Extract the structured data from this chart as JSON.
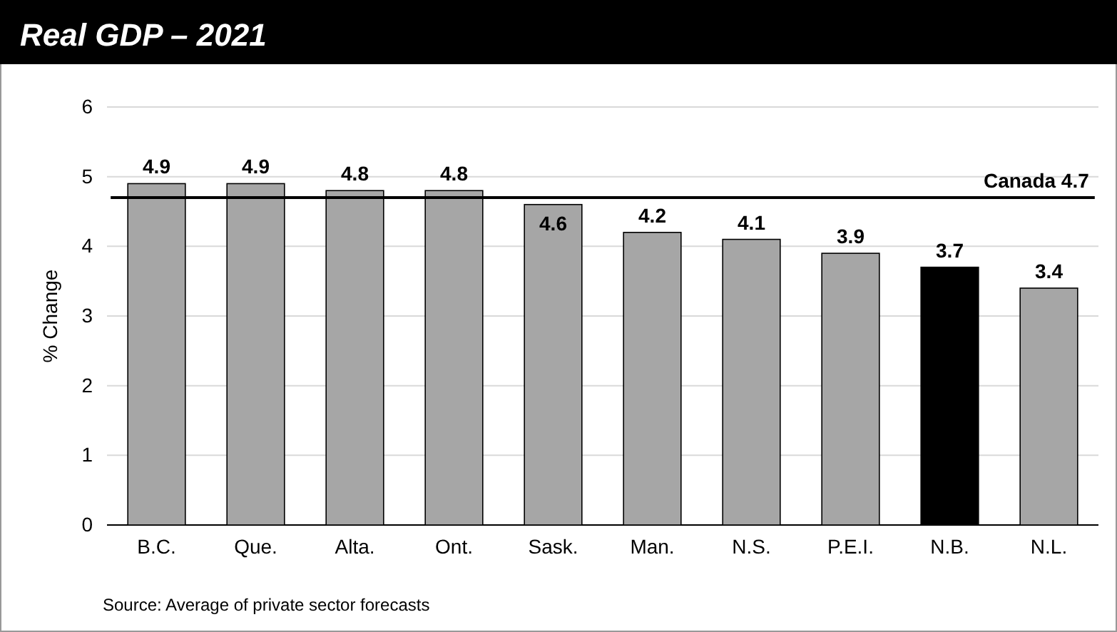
{
  "chart_data": {
    "type": "bar",
    "title": "Real GDP – 2021",
    "ylabel": "% Change",
    "categories": [
      "B.C.",
      "Que.",
      "Alta.",
      "Ont.",
      "Sask.",
      "Man.",
      "N.S.",
      "P.E.I.",
      "N.B.",
      "N.L."
    ],
    "values": [
      4.9,
      4.9,
      4.8,
      4.8,
      4.6,
      4.2,
      4.1,
      3.9,
      3.7,
      3.4
    ],
    "colors": [
      "#a6a6a6",
      "#a6a6a6",
      "#a6a6a6",
      "#a6a6a6",
      "#a6a6a6",
      "#a6a6a6",
      "#a6a6a6",
      "#a6a6a6",
      "#000000",
      "#a6a6a6"
    ],
    "ylim": [
      0,
      6
    ],
    "yticks": [
      0,
      1,
      2,
      3,
      4,
      5,
      6
    ],
    "grid": "y",
    "data_labels": true,
    "ref_lines": [
      {
        "axis": "y",
        "value": 4.7,
        "label": "Canada 4.7",
        "color": "#000000"
      }
    ],
    "annotations": [
      "Source: Average of private sector forecasts"
    ]
  }
}
